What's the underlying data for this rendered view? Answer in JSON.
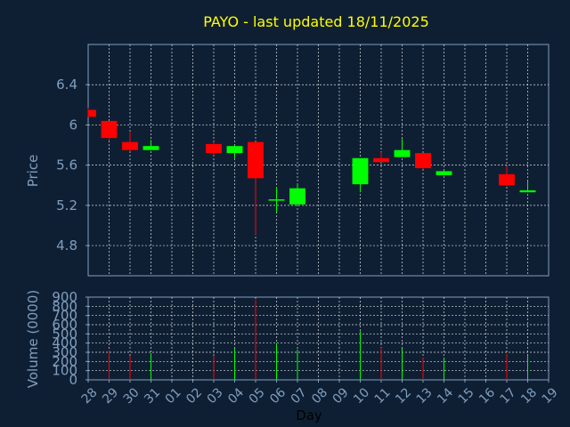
{
  "chart_data": [
    {
      "type": "candlestick",
      "title": "PAYO - last updated 18/11/2025",
      "xlabel": "",
      "ylabel": "Price",
      "ylim": [
        4.5,
        6.8
      ],
      "yticks": [
        4.8,
        5.2,
        5.6,
        6,
        6.4
      ],
      "ytick_labels": [
        "4.8",
        "5.2",
        "5.6",
        "6",
        "6.4"
      ],
      "grid": true,
      "colors": {
        "up": "#00ff00",
        "down": "#ff0000",
        "title": "#ffff00",
        "axis_text": "#7f9fbf",
        "grid": "#ffffff",
        "frame": "#7f9fbf",
        "background": "#0f1f33"
      },
      "candles": [
        {
          "x": "28",
          "open": 6.15,
          "high": 6.17,
          "low": 6.08,
          "close": 6.08
        },
        {
          "x": "29",
          "open": 6.04,
          "high": 6.04,
          "low": 5.85,
          "close": 5.87
        },
        {
          "x": "30",
          "open": 5.83,
          "high": 5.93,
          "low": 5.74,
          "close": 5.75
        },
        {
          "x": "31",
          "open": 5.75,
          "high": 5.85,
          "low": 5.75,
          "close": 5.79
        },
        {
          "x": "03",
          "open": 5.81,
          "high": 5.83,
          "low": 5.7,
          "close": 5.72
        },
        {
          "x": "04",
          "open": 5.72,
          "high": 5.8,
          "low": 5.67,
          "close": 5.79
        },
        {
          "x": "05",
          "open": 5.83,
          "high": 5.83,
          "low": 4.91,
          "close": 5.47
        },
        {
          "x": "06",
          "open": 5.25,
          "high": 5.38,
          "low": 5.13,
          "close": 5.26
        },
        {
          "x": "07",
          "open": 5.21,
          "high": 5.42,
          "low": 5.21,
          "close": 5.37
        },
        {
          "x": "10",
          "open": 5.41,
          "high": 5.66,
          "low": 5.33,
          "close": 5.67
        },
        {
          "x": "11",
          "open": 5.67,
          "high": 5.73,
          "low": 5.63,
          "close": 5.63
        },
        {
          "x": "12",
          "open": 5.68,
          "high": 5.86,
          "low": 5.68,
          "close": 5.75
        },
        {
          "x": "13",
          "open": 5.72,
          "high": 5.72,
          "low": 5.56,
          "close": 5.57
        },
        {
          "x": "14",
          "open": 5.5,
          "high": 5.55,
          "low": 5.5,
          "close": 5.54
        },
        {
          "x": "17",
          "open": 5.51,
          "high": 5.59,
          "low": 5.39,
          "close": 5.4
        },
        {
          "x": "18",
          "open": 5.33,
          "high": 5.44,
          "low": 5.33,
          "close": 5.35
        }
      ]
    },
    {
      "type": "bar",
      "xlabel": "Day",
      "ylabel": "Volume (0000)",
      "ylim": [
        0,
        900
      ],
      "yticks": [
        0,
        100,
        200,
        300,
        400,
        500,
        600,
        700,
        800,
        900
      ],
      "ytick_labels": [
        "0",
        "100",
        "200",
        "300",
        "400",
        "500",
        "600",
        "700",
        "800",
        "900"
      ],
      "grid": true,
      "categories": [
        "28",
        "29",
        "30",
        "31",
        "01",
        "02",
        "03",
        "04",
        "05",
        "06",
        "07",
        "08",
        "09",
        "10",
        "11",
        "12",
        "13",
        "14",
        "15",
        "16",
        "17",
        "18",
        "19"
      ],
      "values": [
        0,
        320,
        260,
        290,
        0,
        0,
        260,
        340,
        870,
        400,
        330,
        0,
        0,
        530,
        350,
        340,
        240,
        230,
        0,
        0,
        280,
        260,
        0
      ],
      "bar_colors": [
        "",
        "#ff0000",
        "#ff0000",
        "#00ff00",
        "",
        "",
        "#ff0000",
        "#00ff00",
        "#ff0000",
        "#00ff00",
        "#00ff00",
        "",
        "",
        "#00ff00",
        "#ff0000",
        "#00ff00",
        "#ff0000",
        "#00ff00",
        "",
        "",
        "#ff0000",
        "#00ff00",
        ""
      ]
    }
  ]
}
